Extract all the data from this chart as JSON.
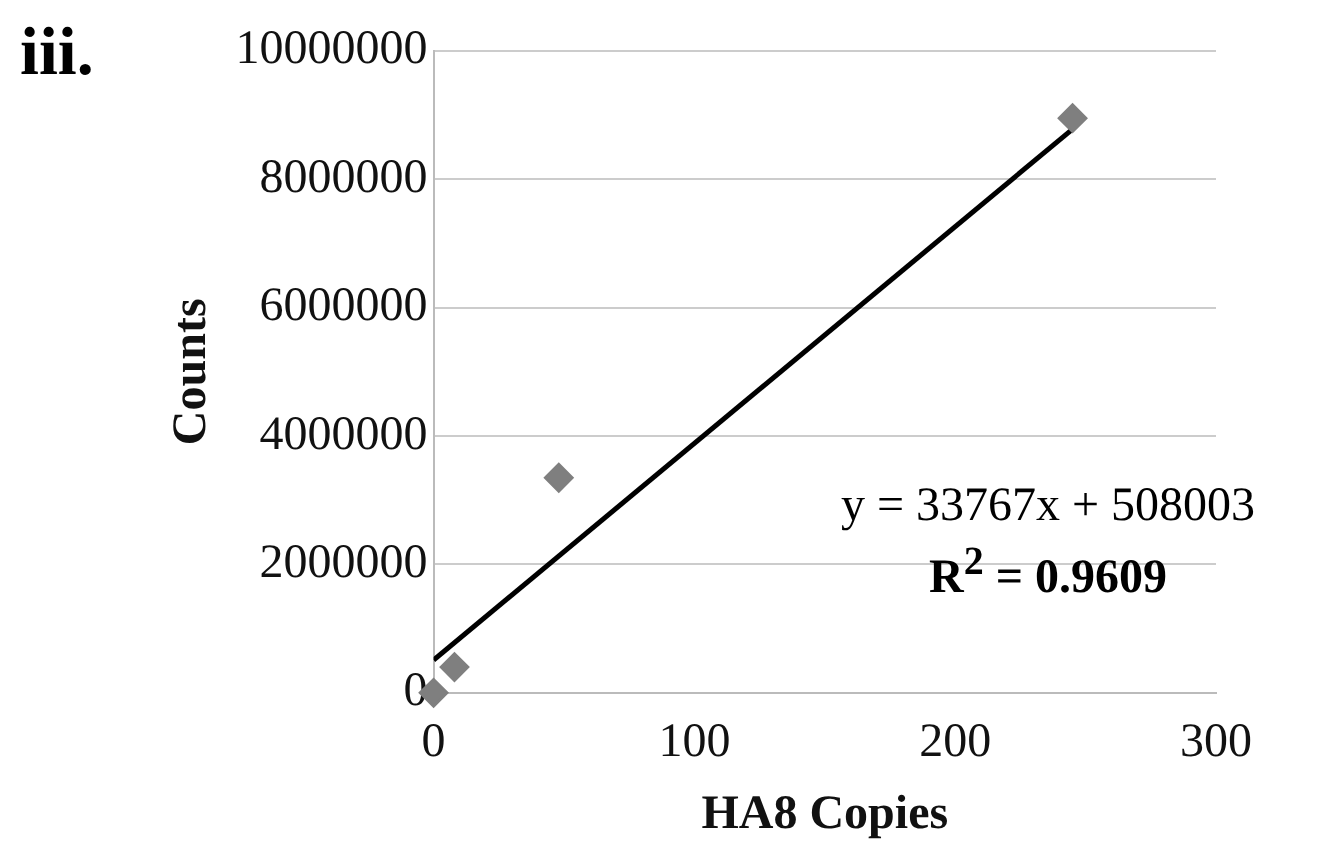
{
  "chart_data": {
    "type": "scatter",
    "title": "iii.",
    "xlabel": "HA8 Copies",
    "ylabel": "Counts",
    "xlim": [
      0,
      300
    ],
    "xticks": [
      0,
      100,
      200,
      300
    ],
    "ylim": [
      0,
      10000000
    ],
    "yticks": [
      0,
      2000000,
      4000000,
      6000000,
      8000000,
      10000000
    ],
    "grid": "y",
    "legend": false,
    "annotations": [
      "y = 33767x + 508003",
      "R$^{2}$ = 0.9609"
    ],
    "series": [
      {
        "color": "#7f7f7f",
        "marker": "diamond",
        "x": [
          0,
          8,
          48,
          245
        ],
        "values": [
          0,
          400000,
          3350000,
          8950000
        ]
      },
      {
        "type": "line",
        "marker": "none",
        "color": "#000000",
        "x": [
          0,
          245
        ],
        "values": [
          510000,
          8780000
        ]
      }
    ]
  }
}
